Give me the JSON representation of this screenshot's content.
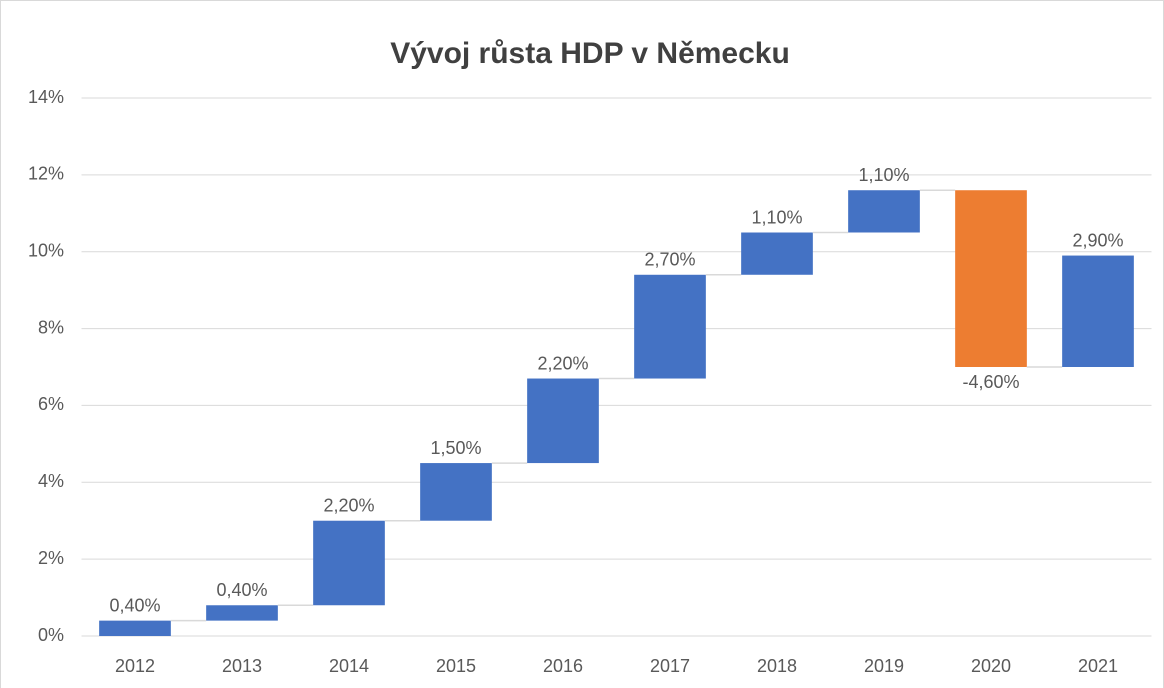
{
  "chart_data": {
    "type": "waterfall",
    "title": "Vývoj růsta HDP v Německu",
    "categories": [
      "2012",
      "2013",
      "2014",
      "2015",
      "2016",
      "2017",
      "2018",
      "2019",
      "2020",
      "2021"
    ],
    "values": [
      0.4,
      0.4,
      2.2,
      1.5,
      2.2,
      2.7,
      1.1,
      1.1,
      -4.6,
      2.9
    ],
    "value_labels": [
      "0,40%",
      "0,40%",
      "2,20%",
      "1,50%",
      "2,20%",
      "2,70%",
      "1,10%",
      "1,10%",
      "-4,60%",
      "2,90%"
    ],
    "increase_color": "#4472c4",
    "decrease_color": "#ed7d31",
    "ylim": [
      0,
      14
    ],
    "yticks": [
      {
        "value": 0,
        "label": "0%"
      },
      {
        "value": 2,
        "label": "2%"
      },
      {
        "value": 4,
        "label": "4%"
      },
      {
        "value": 6,
        "label": "6%"
      },
      {
        "value": 8,
        "label": "8%"
      },
      {
        "value": 10,
        "label": "10%"
      },
      {
        "value": 12,
        "label": "12%"
      },
      {
        "value": 14,
        "label": "14%"
      }
    ],
    "grid": true
  }
}
